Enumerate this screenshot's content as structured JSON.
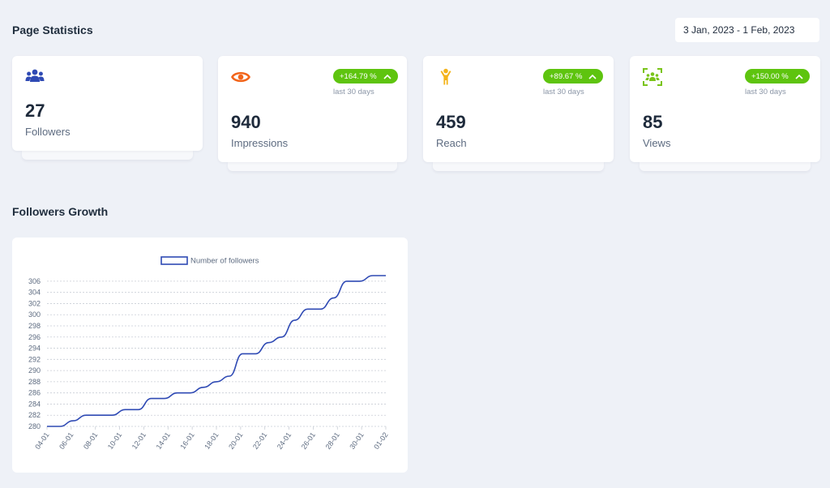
{
  "page": {
    "title": "Page Statistics",
    "date_range": "3 Jan, 2023 - 1 Feb, 2023"
  },
  "stats": {
    "followers": {
      "value": "27",
      "label": "Followers",
      "icon": "users-icon",
      "color": "#2f4ab4"
    },
    "impressions": {
      "value": "940",
      "label": "Impressions",
      "change": "+164.79 %",
      "period": "last 30 days",
      "icon": "eye-icon",
      "color": "#f2651b"
    },
    "reach": {
      "value": "459",
      "label": "Reach",
      "change": "+89.67 %",
      "period": "last 30 days",
      "icon": "person-icon",
      "color": "#f4b31a"
    },
    "views": {
      "value": "85",
      "label": "Views",
      "change": "+150.00 %",
      "period": "last 30 days",
      "icon": "group-scan-icon",
      "color": "#7ac41a"
    }
  },
  "growth": {
    "title": "Followers Growth"
  },
  "colors": {
    "badge": "#5ec40f",
    "line": "#2f4ab4",
    "background": "#eef1f7"
  },
  "chart_data": {
    "type": "line",
    "series": [
      {
        "name": "Number of followers",
        "values": [
          280,
          280,
          281,
          282,
          282,
          282,
          283,
          283,
          285,
          285,
          286,
          286,
          287,
          288,
          289,
          293,
          293,
          295,
          296,
          299,
          301,
          301,
          303,
          306,
          306,
          307,
          307
        ]
      }
    ],
    "x_tick_labels": [
      "04-01",
      "06-01",
      "08-01",
      "10-01",
      "12-01",
      "14-01",
      "16-01",
      "18-01",
      "20-01",
      "22-01",
      "24-01",
      "26-01",
      "28-01",
      "30-01",
      "01-02"
    ],
    "y_ticks": [
      280,
      282,
      284,
      286,
      288,
      290,
      292,
      294,
      296,
      298,
      300,
      302,
      304,
      306
    ],
    "ylim": [
      280,
      307
    ],
    "grid": true,
    "legend_position": "top-center"
  }
}
